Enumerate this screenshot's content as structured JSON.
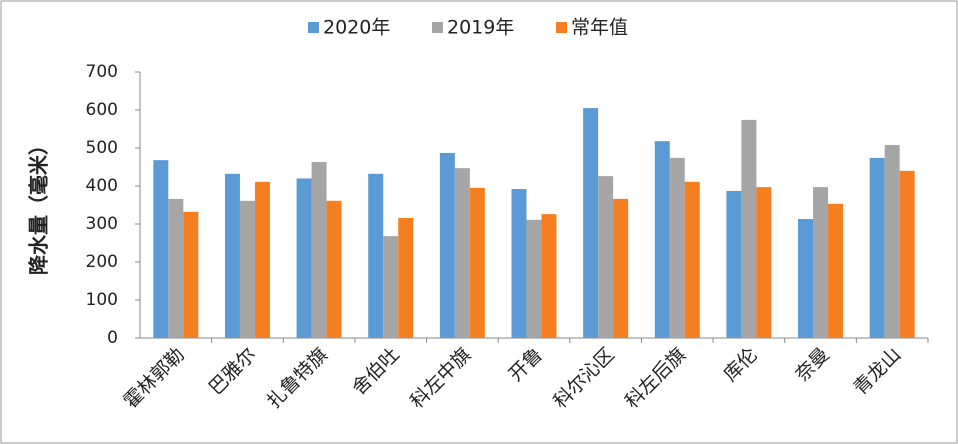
{
  "chart_data": {
    "type": "bar",
    "y_label": "降水量（毫米）",
    "categories": [
      "霍林郭勒",
      "巴雅尔",
      "扎鲁特旗",
      "舍伯吐",
      "科左中旗",
      "开鲁",
      "科尔沁区",
      "科左后旗",
      "库伦",
      "奈曼",
      "青龙山"
    ],
    "series": [
      {
        "name": "2020年",
        "color": "#5b9bd5",
        "values": [
          468,
          432,
          420,
          432,
          487,
          392,
          605,
          518,
          387,
          313,
          474
        ]
      },
      {
        "name": "2019年",
        "color": "#a5a5a5",
        "values": [
          366,
          361,
          463,
          268,
          447,
          311,
          426,
          474,
          574,
          397,
          508
        ]
      },
      {
        "name": "常年值",
        "color": "#f57f20",
        "values": [
          332,
          411,
          361,
          316,
          395,
          326,
          366,
          411,
          397,
          353,
          440
        ]
      }
    ],
    "ylim": [
      0,
      700
    ],
    "yticks": [
      0,
      100,
      200,
      300,
      400,
      500,
      600,
      700
    ],
    "grid": false,
    "legend": "top"
  }
}
